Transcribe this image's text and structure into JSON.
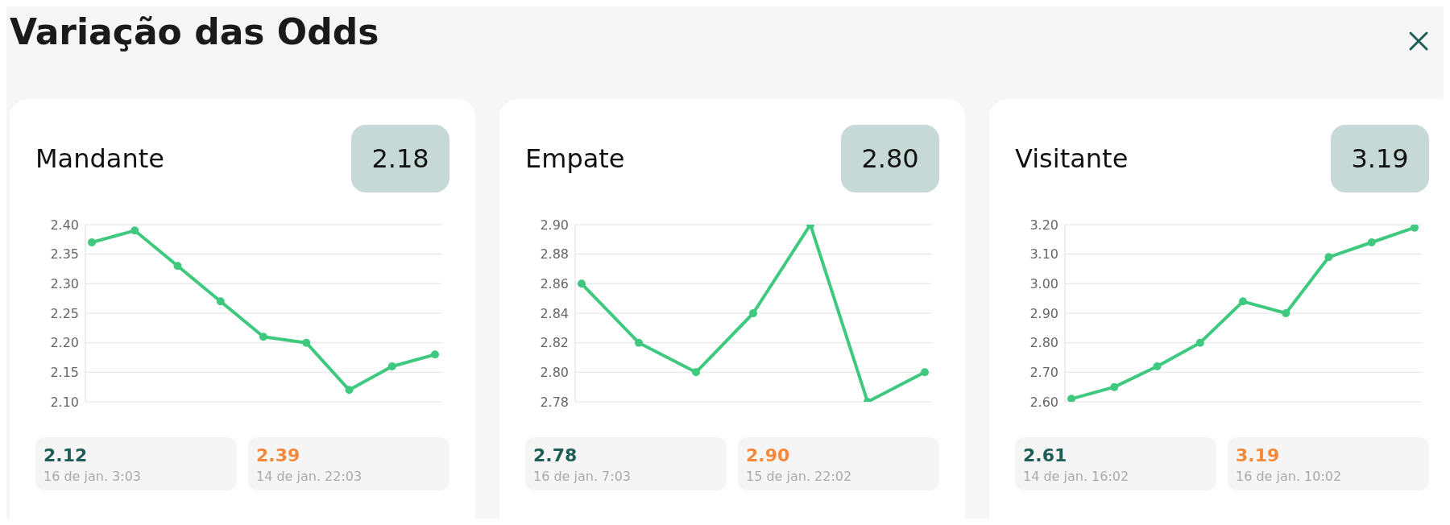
{
  "chart_data": [
    {
      "type": "other",
      "title": "Variação das Odds"
    },
    {
      "type": "line",
      "title": "Mandante",
      "categories": [
        null,
        null,
        null,
        null,
        null,
        null,
        null,
        null,
        null
      ],
      "values": [
        2.37,
        2.39,
        2.33,
        2.27,
        2.21,
        2.2,
        2.12,
        2.16,
        2.18
      ],
      "color": "#3ec97e",
      "ylim": [
        2.1,
        2.4
      ],
      "yticks": [
        {
          "value": 2.1,
          "label": "2.10"
        },
        {
          "value": 2.15,
          "label": "2.15"
        },
        {
          "value": 2.2,
          "label": "2.20"
        },
        {
          "value": 2.25,
          "label": "2.25"
        },
        {
          "value": 2.3,
          "label": "2.30"
        },
        {
          "value": 2.35,
          "label": "2.35"
        },
        {
          "value": 2.4,
          "label": "2.40"
        }
      ],
      "grid": "y",
      "marker": "circle",
      "tick_labels": "y",
      "annotations": [
        "2.18",
        "2.12",
        "16 de jan. 3:03",
        "2.39",
        "14 de jan. 22:03"
      ]
    },
    {
      "type": "line",
      "title": "Empate",
      "categories": [
        null,
        null,
        null,
        null,
        null,
        null,
        null
      ],
      "values": [
        2.86,
        2.82,
        2.8,
        2.84,
        2.9,
        2.78,
        2.8
      ],
      "color": "#3ec97e",
      "ylim": [
        2.78,
        2.9
      ],
      "yticks": [
        {
          "value": 2.78,
          "label": "2.78"
        },
        {
          "value": 2.8,
          "label": "2.80"
        },
        {
          "value": 2.82,
          "label": "2.82"
        },
        {
          "value": 2.84,
          "label": "2.84"
        },
        {
          "value": 2.86,
          "label": "2.86"
        },
        {
          "value": 2.88,
          "label": "2.88"
        },
        {
          "value": 2.9,
          "label": "2.90"
        }
      ],
      "grid": "y",
      "marker": "circle",
      "tick_labels": "y",
      "annotations": [
        "2.80",
        "2.78",
        "16 de jan. 7:03",
        "2.90",
        "15 de jan. 22:02"
      ]
    },
    {
      "type": "line",
      "title": "Visitante",
      "categories": [
        null,
        null,
        null,
        null,
        null,
        null,
        null,
        null,
        null
      ],
      "values": [
        2.61,
        2.65,
        2.72,
        2.8,
        2.94,
        2.9,
        3.09,
        3.14,
        3.19
      ],
      "color": "#3ec97e",
      "ylim": [
        2.6,
        3.2
      ],
      "yticks": [
        {
          "value": 2.6,
          "label": "2.60"
        },
        {
          "value": 2.7,
          "label": "2.70"
        },
        {
          "value": 2.8,
          "label": "2.80"
        },
        {
          "value": 2.9,
          "label": "2.90"
        },
        {
          "value": 3.0,
          "label": "3.00"
        },
        {
          "value": 3.1,
          "label": "3.10"
        },
        {
          "value": 3.2,
          "label": "3.20"
        }
      ],
      "grid": "y",
      "marker": "circle",
      "tick_labels": "y",
      "annotations": [
        "3.19",
        "2.61",
        "14 de jan. 16:02",
        "3.19",
        "16 de jan. 10:02"
      ]
    }
  ]
}
